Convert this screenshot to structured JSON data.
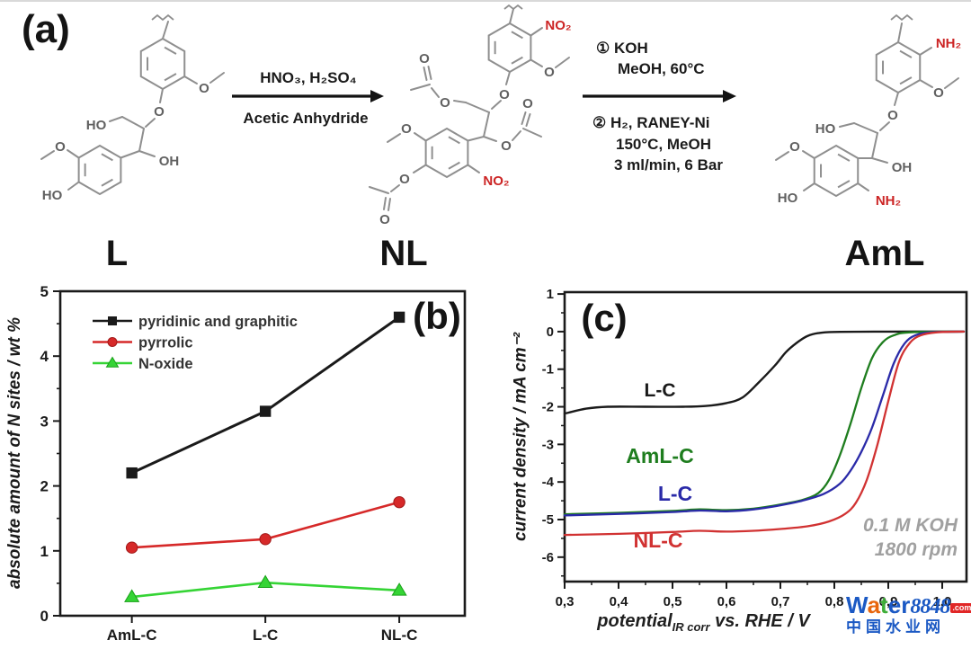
{
  "scheme": {
    "panel_label": "(a)",
    "arrow1": {
      "line1": "HNO₃, H₂SO₄",
      "line2": "Acetic Anhydride"
    },
    "arrow2": {
      "top1": "① KOH",
      "top2": "MeOH, 60°C",
      "bot1": "② H₂, RANEY-Ni",
      "bot2": "150°C, MeOH",
      "bot3": "3 ml/min, 6 Bar"
    },
    "L": {
      "caption": "L",
      "ho": "HO",
      "ether_o": "O",
      "methoxy_o": "O",
      "oh": "OH",
      "methoxy2_o": "O",
      "phenol_ho": "HO"
    },
    "NL": {
      "caption": "NL",
      "no2_top": "NO₂",
      "methoxy_o": "O",
      "ether_o": "O",
      "ac_left_ester_o": "O",
      "ac_left_carbonyl_o": "O",
      "ac_right_ester_o": "O",
      "ac_right_carbonyl_o": "O",
      "methoxy2_o": "O",
      "ac_bot_ester_o": "O",
      "ac_bot_carbonyl_o": "O",
      "no2_bot": "NO₂"
    },
    "AmL": {
      "caption": "AmL",
      "nh2_top": "NH₂",
      "methoxy_o": "O",
      "ether_o": "O",
      "ho": "HO",
      "oh": "OH",
      "methoxy2_o": "O",
      "phenol_ho": "HO",
      "nh2_bot": "NH₂"
    }
  },
  "chart_data": [
    {
      "id": "b",
      "type": "line",
      "panel_label": "(b)",
      "ylabel": "absolute amount of N sites / wt %",
      "ylim": [
        0,
        5
      ],
      "yticks": [
        0,
        1,
        2,
        3,
        4,
        5
      ],
      "categories": [
        "AmL-C",
        "L-C",
        "NL-C"
      ],
      "legend_position": "top-left",
      "grid": false,
      "series": [
        {
          "name": "pyridinic and graphitic",
          "marker": "square",
          "color": "#1a1a1a",
          "values": [
            2.2,
            3.15,
            4.6
          ]
        },
        {
          "name": "pyrrolic",
          "marker": "circle",
          "color": "#d62929",
          "values": [
            1.05,
            1.18,
            1.75
          ]
        },
        {
          "name": "N-oxide",
          "marker": "triangle",
          "color": "#35d435",
          "values": [
            0.29,
            0.51,
            0.39
          ]
        }
      ]
    },
    {
      "id": "c",
      "type": "line",
      "panel_label": "(c)",
      "ylabel": "current density / mA cm⁻²",
      "xlabel": {
        "main": "potential",
        "sub": "IR corr",
        "rest": " vs. RHE / V"
      },
      "xlim": [
        0.3,
        1.045
      ],
      "ylim": [
        -6.65,
        1.05
      ],
      "xticks": [
        0.3,
        0.4,
        0.5,
        0.6,
        0.7,
        0.8,
        0.9,
        1.0
      ],
      "xtick_labels": [
        "0,3",
        "0,4",
        "0,5",
        "0,6",
        "0,7",
        "0,8",
        "0,9",
        "1,0"
      ],
      "yticks": [
        1,
        0,
        -1,
        -2,
        -3,
        -4,
        -5,
        -6
      ],
      "annotation": {
        "line1": "0.1 M KOH",
        "line2": "1800 rpm"
      },
      "grid": false,
      "series": [
        {
          "name": "L-C",
          "color": "#1a1a1a",
          "points": [
            [
              0.3,
              -2.18
            ],
            [
              0.34,
              -2.05
            ],
            [
              0.38,
              -2.0
            ],
            [
              0.45,
              -2.0
            ],
            [
              0.52,
              -2.0
            ],
            [
              0.56,
              -1.98
            ],
            [
              0.6,
              -1.9
            ],
            [
              0.63,
              -1.75
            ],
            [
              0.66,
              -1.35
            ],
            [
              0.69,
              -0.9
            ],
            [
              0.71,
              -0.55
            ],
            [
              0.73,
              -0.3
            ],
            [
              0.75,
              -0.12
            ],
            [
              0.77,
              -0.04
            ],
            [
              0.8,
              -0.01
            ],
            [
              0.9,
              0
            ],
            [
              1.04,
              0
            ]
          ]
        },
        {
          "name": "AmL-C",
          "color": "#1e7d1e",
          "points": [
            [
              0.3,
              -4.86
            ],
            [
              0.4,
              -4.82
            ],
            [
              0.5,
              -4.77
            ],
            [
              0.55,
              -4.73
            ],
            [
              0.6,
              -4.75
            ],
            [
              0.65,
              -4.71
            ],
            [
              0.7,
              -4.6
            ],
            [
              0.74,
              -4.48
            ],
            [
              0.77,
              -4.3
            ],
            [
              0.79,
              -3.95
            ],
            [
              0.81,
              -3.3
            ],
            [
              0.83,
              -2.45
            ],
            [
              0.85,
              -1.5
            ],
            [
              0.87,
              -0.7
            ],
            [
              0.89,
              -0.28
            ],
            [
              0.91,
              -0.1
            ],
            [
              0.94,
              -0.02
            ],
            [
              1.04,
              0
            ]
          ]
        },
        {
          "name": "L-C",
          "color": "#2a2aa8",
          "points": [
            [
              0.3,
              -4.89
            ],
            [
              0.4,
              -4.85
            ],
            [
              0.5,
              -4.8
            ],
            [
              0.55,
              -4.76
            ],
            [
              0.6,
              -4.78
            ],
            [
              0.65,
              -4.73
            ],
            [
              0.7,
              -4.62
            ],
            [
              0.74,
              -4.5
            ],
            [
              0.78,
              -4.32
            ],
            [
              0.81,
              -4.05
            ],
            [
              0.83,
              -3.7
            ],
            [
              0.85,
              -3.2
            ],
            [
              0.87,
              -2.55
            ],
            [
              0.89,
              -1.7
            ],
            [
              0.91,
              -0.85
            ],
            [
              0.93,
              -0.32
            ],
            [
              0.95,
              -0.1
            ],
            [
              0.98,
              -0.02
            ],
            [
              1.04,
              0
            ]
          ]
        },
        {
          "name": "NL-C",
          "color": "#d13232",
          "points": [
            [
              0.3,
              -5.41
            ],
            [
              0.4,
              -5.38
            ],
            [
              0.5,
              -5.33
            ],
            [
              0.55,
              -5.3
            ],
            [
              0.6,
              -5.32
            ],
            [
              0.65,
              -5.3
            ],
            [
              0.7,
              -5.25
            ],
            [
              0.75,
              -5.18
            ],
            [
              0.79,
              -5.05
            ],
            [
              0.82,
              -4.85
            ],
            [
              0.84,
              -4.55
            ],
            [
              0.86,
              -3.95
            ],
            [
              0.88,
              -3.0
            ],
            [
              0.9,
              -1.85
            ],
            [
              0.92,
              -0.8
            ],
            [
              0.94,
              -0.3
            ],
            [
              0.96,
              -0.1
            ],
            [
              0.99,
              -0.02
            ],
            [
              1.04,
              0
            ]
          ]
        }
      ]
    }
  ],
  "watermark": {
    "word_letters": [
      [
        "W",
        "#1b59c4"
      ],
      [
        "a",
        "#e8660d"
      ],
      [
        "t",
        "#3fae3a"
      ],
      [
        "e",
        "#1b59c4"
      ],
      [
        "r",
        "#1b59c4"
      ]
    ],
    "number": "8848",
    "tld": ".com",
    "cn_text": "中国水业网",
    "cn_color": "#1b59c4"
  },
  "colors": {
    "nitro_amino_red": "#cc2424",
    "bond_gray": "#8f8f8f",
    "annotation_gray": "#a0a0a0",
    "axis_black": "#1a1a1a"
  }
}
